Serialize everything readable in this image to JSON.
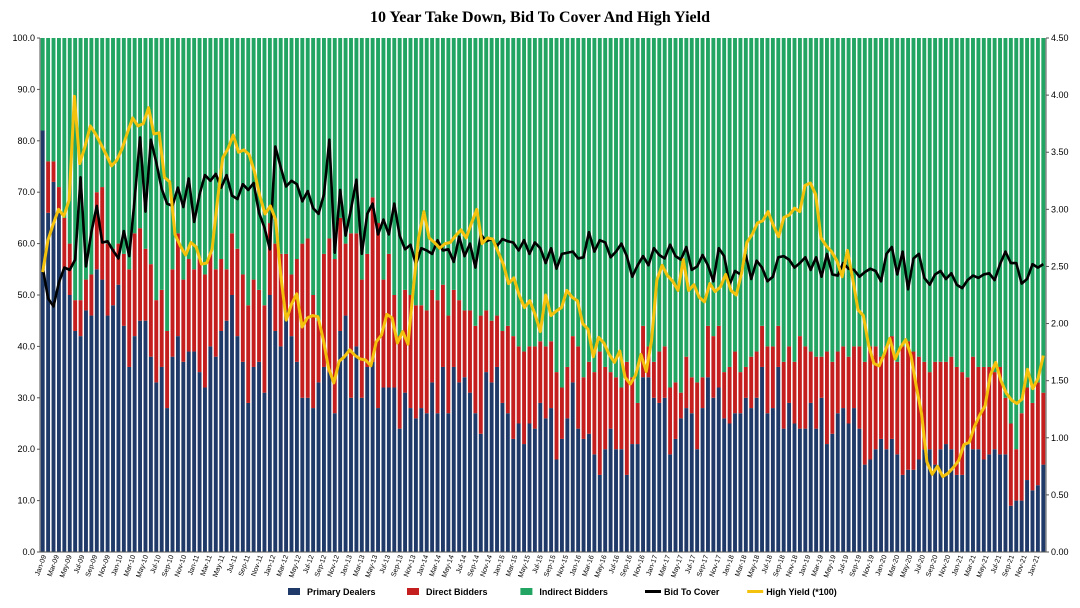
{
  "chart_data": {
    "type": "bar",
    "title": "10 Year Take Down, Bid To Cover And High Yield",
    "xlabel": "",
    "ylabel": "",
    "ylim": [
      0,
      100
    ],
    "y2lim": [
      0,
      4.5
    ],
    "left_ticks": [
      "0.0",
      "10.0",
      "20.0",
      "30.0",
      "40.0",
      "50.0",
      "60.0",
      "70.0",
      "80.0",
      "90.0",
      "100.0"
    ],
    "right_ticks": [
      "0.00",
      "0.50",
      "1.00",
      "1.50",
      "2.00",
      "2.50",
      "3.00",
      "3.50",
      "4.00",
      "4.50"
    ],
    "x_tick_labels": [
      "Jan-09",
      "Mar-09",
      "May-09",
      "Jul-09",
      "Sep-09",
      "Nov-09",
      "Jan-10",
      "Mar-10",
      "May-10",
      "Jul-10",
      "Sep-10",
      "Nov-10",
      "Jan-11",
      "Mar-11",
      "May-11",
      "Jul-11",
      "Sep-11",
      "Nov-11",
      "Jan-12",
      "Mar-12",
      "May-12",
      "Jul-12",
      "Sep-12",
      "Nov-12",
      "Jan-13",
      "Mar-13",
      "May-13",
      "Jul-13",
      "Sep-13",
      "Nov-13",
      "Jan-14",
      "Mar-14",
      "May-14",
      "Jul-14",
      "Sep-14",
      "Nov-14",
      "Jan-15",
      "Mar-15",
      "May-15",
      "Jul-15",
      "Sep-15",
      "Nov-15",
      "Jan-16",
      "Mar-16",
      "May-16",
      "Jul-16",
      "Sep-16",
      "Nov-16",
      "Jan-17",
      "Mar-17",
      "May-17",
      "Jul-17",
      "Sep-17",
      "Nov-17",
      "Jan-18",
      "Mar-18",
      "May-18",
      "Jul-18",
      "Sep-18",
      "Nov-18",
      "Jan-19",
      "Mar-19",
      "May-19",
      "Jul-19",
      "Sep-19",
      "Nov-19",
      "Jan-20",
      "Mar-20",
      "May-20",
      "Jul-20",
      "Sep-20",
      "Nov-20",
      "Jan-21",
      "Mar-21",
      "May-21",
      "Jul-21",
      "Sep-21",
      "Nov-21",
      "Jan-21"
    ],
    "stack_order": [
      "Primary Dealers",
      "Direct Bidders",
      "Indirect Bidders"
    ],
    "series": [
      {
        "name": "Primary Dealers",
        "kind": "bar",
        "color": "#1f3a68",
        "values": [
          82,
          66,
          72,
          66,
          55,
          50,
          43,
          42,
          47,
          46,
          55,
          53,
          46,
          48,
          52,
          44,
          36,
          42,
          45,
          45,
          38,
          33,
          36,
          28,
          38,
          42,
          37,
          39,
          39,
          35,
          32,
          40,
          38,
          43,
          45,
          50,
          42,
          37,
          29,
          36,
          37,
          31,
          50,
          43,
          40,
          47,
          42,
          37,
          30,
          30,
          28,
          33,
          36,
          35,
          27,
          43,
          46,
          30,
          40,
          30,
          36,
          37,
          28,
          32,
          32,
          32,
          24,
          31,
          28,
          26,
          28,
          27,
          33,
          27,
          36,
          27,
          36,
          33,
          34,
          31,
          27,
          23,
          35,
          33,
          36,
          29,
          27,
          22,
          25,
          21,
          25,
          24,
          29,
          26,
          28,
          18,
          22,
          26,
          33,
          24,
          22,
          23,
          19,
          15,
          20,
          24,
          20,
          20,
          15,
          21,
          21,
          34,
          34,
          30,
          29,
          30,
          19,
          22,
          26,
          28,
          27,
          20,
          28,
          34,
          30,
          32,
          26,
          25,
          27,
          27,
          30,
          28,
          30,
          36,
          27,
          28,
          36,
          24,
          29,
          25,
          24,
          24,
          29,
          24,
          30,
          21,
          23,
          27,
          28,
          25,
          28,
          24,
          17,
          18,
          20,
          22,
          20,
          22,
          19,
          15,
          16,
          16,
          18,
          20,
          20,
          17,
          20,
          21,
          20,
          15,
          15,
          21,
          20,
          20,
          18,
          19,
          20,
          19,
          19,
          9,
          10,
          10,
          14,
          12,
          13,
          17
        ]
      },
      {
        "name": "Direct Bidders",
        "kind": "bar",
        "color": "#c41e1e",
        "values": [
          0,
          10,
          4,
          5,
          10,
          10,
          6,
          7,
          6,
          8,
          15,
          18,
          14,
          11,
          8,
          14,
          19,
          20,
          18,
          14,
          18,
          16,
          15,
          15,
          17,
          20,
          16,
          18,
          16,
          22,
          22,
          18,
          17,
          14,
          10,
          12,
          17,
          17,
          19,
          17,
          14,
          17,
          14,
          17,
          18,
          11,
          12,
          20,
          30,
          31,
          22,
          12,
          22,
          26,
          30,
          22,
          14,
          32,
          22,
          23,
          22,
          32,
          36,
          21,
          26,
          18,
          18,
          20,
          22,
          22,
          20,
          20,
          18,
          22,
          16,
          19,
          15,
          16,
          13,
          16,
          17,
          23,
          12,
          12,
          10,
          14,
          17,
          20,
          15,
          18,
          15,
          16,
          12,
          14,
          13,
          17,
          10,
          10,
          9,
          16,
          12,
          14,
          16,
          24,
          16,
          11,
          14,
          12,
          22,
          13,
          8,
          10,
          6,
          7,
          10,
          10,
          13,
          11,
          5,
          10,
          7,
          13,
          6,
          10,
          12,
          12,
          9,
          11,
          12,
          8,
          6,
          10,
          9,
          8,
          13,
          12,
          8,
          13,
          11,
          12,
          18,
          16,
          10,
          14,
          8,
          18,
          14,
          12,
          12,
          13,
          12,
          16,
          20,
          22,
          20,
          16,
          20,
          20,
          18,
          25,
          25,
          23,
          20,
          17,
          15,
          20,
          17,
          16,
          18,
          21,
          20,
          13,
          18,
          16,
          18,
          17,
          15,
          17,
          11,
          16,
          10,
          17,
          18,
          17,
          20,
          14
        ]
      },
      {
        "name": "Indirect Bidders",
        "kind": "bar",
        "color": "#22a562",
        "values": [
          18,
          24,
          24,
          29,
          35,
          40,
          51,
          51,
          47,
          46,
          30,
          29,
          40,
          41,
          40,
          42,
          45,
          38,
          37,
          41,
          44,
          51,
          49,
          57,
          45,
          38,
          47,
          43,
          45,
          43,
          46,
          42,
          45,
          43,
          45,
          38,
          41,
          46,
          52,
          47,
          49,
          52,
          36,
          40,
          42,
          42,
          46,
          43,
          40,
          39,
          50,
          55,
          42,
          39,
          43,
          35,
          40,
          38,
          38,
          47,
          42,
          31,
          36,
          47,
          42,
          50,
          58,
          49,
          50,
          52,
          52,
          53,
          49,
          51,
          48,
          54,
          49,
          51,
          53,
          53,
          56,
          54,
          53,
          55,
          54,
          57,
          56,
          58,
          60,
          61,
          60,
          60,
          59,
          60,
          59,
          65,
          68,
          64,
          58,
          60,
          66,
          63,
          65,
          61,
          64,
          65,
          66,
          68,
          63,
          66,
          71,
          56,
          60,
          63,
          61,
          60,
          68,
          67,
          69,
          62,
          66,
          67,
          66,
          56,
          58,
          56,
          65,
          64,
          61,
          65,
          64,
          62,
          61,
          56,
          60,
          60,
          56,
          63,
          60,
          63,
          58,
          60,
          61,
          62,
          62,
          61,
          63,
          61,
          60,
          62,
          60,
          60,
          63,
          60,
          60,
          62,
          60,
          58,
          63,
          60,
          59,
          61,
          62,
          63,
          65,
          63,
          63,
          63,
          62,
          64,
          65,
          66,
          62,
          64,
          64,
          64,
          65,
          64,
          70,
          75,
          80,
          73,
          68,
          71,
          67,
          69
        ]
      },
      {
        "name": "Bid To Cover",
        "kind": "line",
        "color": "#000000",
        "axis": "right",
        "values": [
          2.49,
          2.22,
          2.15,
          2.36,
          2.49,
          2.47,
          2.56,
          3.28,
          2.5,
          2.8,
          3.03,
          2.71,
          2.72,
          2.64,
          2.57,
          2.81,
          2.59,
          3.09,
          3.63,
          2.98,
          3.61,
          3.41,
          3.18,
          3.05,
          3.03,
          3.19,
          3.02,
          3.27,
          2.89,
          3.13,
          3.3,
          3.25,
          3.31,
          3.19,
          3.3,
          3.12,
          3.09,
          3.22,
          3.17,
          3.23,
          2.97,
          2.84,
          2.65,
          3.55,
          3.37,
          3.2,
          3.25,
          3.22,
          3.07,
          3.16,
          3.01,
          2.96,
          3.13,
          3.61,
          2.62,
          3.17,
          2.77,
          3.0,
          3.26,
          2.61,
          2.96,
          3.05,
          2.78,
          2.91,
          2.78,
          3.05,
          2.77,
          2.65,
          2.69,
          2.52,
          2.66,
          2.64,
          2.61,
          2.73,
          2.64,
          2.65,
          2.54,
          2.76,
          2.59,
          2.7,
          2.49,
          2.78,
          2.72,
          2.74,
          2.68,
          2.74,
          2.72,
          2.71,
          2.64,
          2.73,
          2.61,
          2.71,
          2.66,
          2.53,
          2.66,
          2.48,
          2.61,
          2.62,
          2.63,
          2.57,
          2.58,
          2.8,
          2.63,
          2.73,
          2.71,
          2.58,
          2.63,
          2.7,
          2.59,
          2.41,
          2.51,
          2.59,
          2.51,
          2.66,
          2.6,
          2.57,
          2.69,
          2.59,
          2.56,
          2.67,
          2.47,
          2.5,
          2.6,
          2.51,
          2.37,
          2.66,
          2.59,
          2.34,
          2.46,
          2.43,
          2.6,
          2.39,
          2.55,
          2.49,
          2.37,
          2.41,
          2.58,
          2.59,
          2.56,
          2.49,
          2.53,
          2.58,
          2.47,
          2.58,
          2.41,
          2.61,
          2.43,
          2.42,
          2.53,
          2.48,
          2.47,
          2.41,
          2.45,
          2.48,
          2.46,
          2.37,
          2.61,
          2.67,
          2.43,
          2.63,
          2.3,
          2.57,
          2.61,
          2.4,
          2.34,
          2.43,
          2.46,
          2.39,
          2.44,
          2.34,
          2.31,
          2.38,
          2.42,
          2.4,
          2.43,
          2.44,
          2.38,
          2.52,
          2.63,
          2.53,
          2.53,
          2.35,
          2.39,
          2.52,
          2.49,
          2.52
        ]
      },
      {
        "name": "High Yield (*100)",
        "kind": "line",
        "color": "#f4c20d",
        "axis": "right",
        "values": [
          2.45,
          2.73,
          2.87,
          3.0,
          2.94,
          3.08,
          3.99,
          3.4,
          3.55,
          3.73,
          3.66,
          3.57,
          3.48,
          3.38,
          3.43,
          3.53,
          3.67,
          3.8,
          3.73,
          3.75,
          3.89,
          3.66,
          3.67,
          3.28,
          3.24,
          2.78,
          2.68,
          2.6,
          2.71,
          2.67,
          2.52,
          2.53,
          2.65,
          3.07,
          3.45,
          3.53,
          3.65,
          3.5,
          3.52,
          3.48,
          3.33,
          3.12,
          2.96,
          3.03,
          2.91,
          2.41,
          2.03,
          2.17,
          2.26,
          1.97,
          2.05,
          2.07,
          2.06,
          1.86,
          1.61,
          1.48,
          1.67,
          1.71,
          1.77,
          1.72,
          1.69,
          1.68,
          1.63,
          1.84,
          1.9,
          2.08,
          2.05,
          1.83,
          1.93,
          1.82,
          2.3,
          2.75,
          2.98,
          2.75,
          2.71,
          2.66,
          2.7,
          2.71,
          2.77,
          2.82,
          2.75,
          2.88,
          3.0,
          2.7,
          2.75,
          2.74,
          2.63,
          2.52,
          2.35,
          2.4,
          2.25,
          2.14,
          2.2,
          2.08,
          1.93,
          2.25,
          2.07,
          2.11,
          2.14,
          2.29,
          2.23,
          2.2,
          2.0,
          1.95,
          1.71,
          1.88,
          1.83,
          1.73,
          1.66,
          1.76,
          1.53,
          1.47,
          1.55,
          1.73,
          1.58,
          1.85,
          2.38,
          2.51,
          2.42,
          2.37,
          2.29,
          2.56,
          2.29,
          2.34,
          2.23,
          2.19,
          2.35,
          2.28,
          2.32,
          2.43,
          2.29,
          2.25,
          2.44,
          2.71,
          2.78,
          2.88,
          2.9,
          2.98,
          2.86,
          2.76,
          2.93,
          2.95,
          3.01,
          2.98,
          3.21,
          3.23,
          3.13,
          2.75,
          2.68,
          2.63,
          2.55,
          2.41,
          2.64,
          2.39,
          2.12,
          2.07,
          1.81,
          1.65,
          1.63,
          1.74,
          1.87,
          1.69,
          1.79,
          1.86,
          1.72,
          1.45,
          1.21,
          0.79,
          0.68,
          0.75,
          0.66,
          0.69,
          0.74,
          0.8,
          0.94,
          0.96,
          1.1,
          1.2,
          1.28,
          1.55,
          1.66,
          1.5,
          1.39,
          1.33,
          1.3,
          1.34,
          1.6,
          1.43,
          1.52,
          1.72
        ]
      }
    ],
    "legend": [
      {
        "label": "Primary Dealers",
        "symbol": "rect",
        "color": "#1f3a68"
      },
      {
        "label": "Direct Bidders",
        "symbol": "rect",
        "color": "#c41e1e"
      },
      {
        "label": "Indirect Bidders",
        "symbol": "rect",
        "color": "#22a562"
      },
      {
        "label": "Bid To Cover",
        "symbol": "line",
        "color": "#000000"
      },
      {
        "label": "High Yield (*100)",
        "symbol": "line",
        "color": "#f4c20d"
      }
    ],
    "legend_placement": "bottom-center",
    "grid": false
  }
}
